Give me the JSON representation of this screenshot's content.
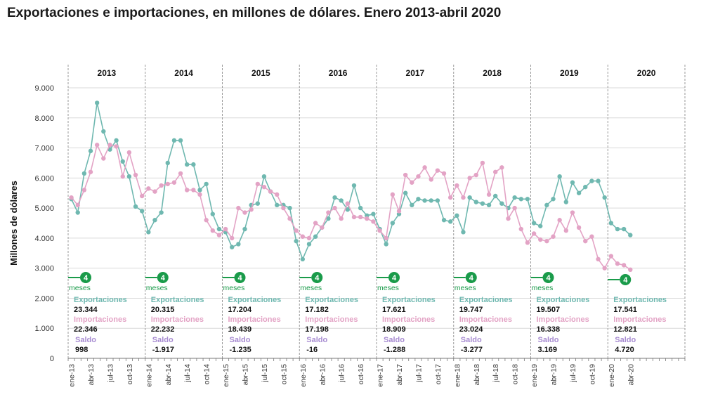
{
  "chart_data": {
    "type": "line",
    "title": "Exportaciones e importaciones, en millones de dólares. Enero 2013-abril 2020",
    "ylabel": "Millones de dólares",
    "ylim": [
      0,
      9000
    ],
    "yticks": [
      {
        "value": 0,
        "label": "0"
      },
      {
        "value": 1000,
        "label": "1.000"
      },
      {
        "value": 2000,
        "label": "2.000"
      },
      {
        "value": 3000,
        "label": "3.000"
      },
      {
        "value": 4000,
        "label": "4.000"
      },
      {
        "value": 5000,
        "label": "5.000"
      },
      {
        "value": 6000,
        "label": "6.000"
      },
      {
        "value": 7000,
        "label": "7.000"
      },
      {
        "value": 8000,
        "label": "8.000"
      },
      {
        "value": 9000,
        "label": "9.000"
      }
    ],
    "grid": true,
    "months_per_year": 12,
    "years": [
      "2013",
      "2014",
      "2015",
      "2016",
      "2017",
      "2018",
      "2019",
      "2020"
    ],
    "x_tick_labels": [
      "ene-13",
      "abr-13",
      "jul-13",
      "oct-13",
      "ene-14",
      "abr-14",
      "jul-14",
      "oct-14",
      "ene-15",
      "abr-15",
      "jul-15",
      "oct-15",
      "ene-16",
      "abr-16",
      "jul-16",
      "oct-16",
      "ene-17",
      "abr-17",
      "jul-17",
      "oct-17",
      "ene-18",
      "abr-18",
      "jul-18",
      "oct-18",
      "ene-19",
      "abr-19",
      "jul-19",
      "oct-19",
      "ene-20",
      "abr-20"
    ],
    "series": [
      {
        "name": "Exportaciones",
        "color": "#6fb8b0",
        "values": [
          5300,
          4850,
          6150,
          6900,
          8500,
          7550,
          6950,
          7250,
          6550,
          6050,
          5050,
          4900,
          4200,
          4600,
          4850,
          6500,
          7250,
          7250,
          6450,
          6450,
          5600,
          5800,
          4800,
          4300,
          4200,
          3700,
          3800,
          4300,
          5100,
          5150,
          6050,
          5550,
          5100,
          5100,
          5000,
          3900,
          3300,
          3800,
          4050,
          4350,
          4650,
          5350,
          5250,
          4950,
          5750,
          5000,
          4750,
          4800,
          4300,
          3800,
          4500,
          4800,
          5500,
          5100,
          5300,
          5250,
          5250,
          5250,
          4600,
          4550,
          4750,
          4200,
          5350,
          5200,
          5150,
          5100,
          5400,
          5150,
          5000,
          5350,
          5300,
          5300,
          4500,
          4400,
          5100,
          5300,
          6050,
          5200,
          5850,
          5500,
          5700,
          5900,
          5900,
          5350,
          4500,
          4300,
          4300,
          4100
        ]
      },
      {
        "name": "Importaciones",
        "color": "#e3a3c5",
        "values": [
          5350,
          5100,
          5600,
          6200,
          7100,
          6650,
          7100,
          7050,
          6050,
          6850,
          6100,
          5400,
          5650,
          5550,
          5750,
          5800,
          5850,
          6150,
          5600,
          5600,
          5450,
          4600,
          4250,
          4100,
          4300,
          4000,
          5000,
          4850,
          4950,
          5800,
          5700,
          5550,
          5450,
          5000,
          4650,
          4250,
          4050,
          4000,
          4500,
          4350,
          4850,
          5000,
          4650,
          5150,
          4700,
          4700,
          4650,
          4550,
          4250,
          4000,
          5450,
          4900,
          6100,
          5850,
          6050,
          6350,
          5950,
          6250,
          6150,
          5350,
          5750,
          5350,
          6000,
          6100,
          6500,
          5450,
          6200,
          6350,
          4650,
          5000,
          4300,
          3850,
          4150,
          3950,
          3900,
          4050,
          4600,
          4250,
          4850,
          4350,
          3900,
          4050,
          3300,
          3000,
          3400,
          3150,
          3100,
          2950
        ]
      }
    ],
    "annual_summary": [
      {
        "year": "2013",
        "months": "4",
        "months_label": "meses",
        "exportaciones": "23.344",
        "importaciones": "22.346",
        "saldo": "998"
      },
      {
        "year": "2014",
        "months": "4",
        "months_label": "meses",
        "exportaciones": "20.315",
        "importaciones": "22.232",
        "saldo": "-1.917"
      },
      {
        "year": "2015",
        "months": "4",
        "months_label": "meses",
        "exportaciones": "17.204",
        "importaciones": "18.439",
        "saldo": "-1.235"
      },
      {
        "year": "2016",
        "months": "4",
        "months_label": "meses",
        "exportaciones": "17.182",
        "importaciones": "17.198",
        "saldo": "-16"
      },
      {
        "year": "2017",
        "months": "4",
        "months_label": "meses",
        "exportaciones": "17.621",
        "importaciones": "18.909",
        "saldo": "-1.288"
      },
      {
        "year": "2018",
        "months": "4",
        "months_label": "meses",
        "exportaciones": "19.747",
        "importaciones": "23.024",
        "saldo": "-3.277"
      },
      {
        "year": "2019",
        "months": "4",
        "months_label": "meses",
        "exportaciones": "19.507",
        "importaciones": "16.338",
        "saldo": "3.169"
      },
      {
        "year": "2020",
        "months": "4",
        "months_label": "",
        "exportaciones": "17.541",
        "importaciones": "12.821",
        "saldo": "4.720"
      }
    ],
    "summary_labels": {
      "exportaciones": "Exportaciones",
      "importaciones": "Importaciones",
      "saldo": "Saldo"
    },
    "colors": {
      "exportaciones": "#6fb8b0",
      "importaciones": "#e3a3c5",
      "saldo": "#a78bd1",
      "badge": "#1a9b4a",
      "grid": "#d9d9d9",
      "divider": "#999999"
    }
  }
}
